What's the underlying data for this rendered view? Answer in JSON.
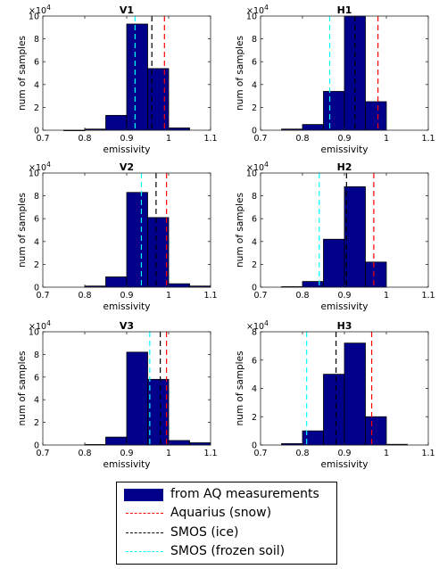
{
  "chart_data": [
    {
      "type": "bar",
      "title": "V1",
      "xlabel": "emissivity",
      "ylabel": "num of samples",
      "multiplier": "×10",
      "multiplier_exp": "4",
      "xlim": [
        0.7,
        1.1
      ],
      "ylim": [
        0,
        10
      ],
      "xticks": [
        "0.7",
        "0.8",
        "0.9",
        "1",
        "1.1"
      ],
      "yticks": [
        "0",
        "2",
        "4",
        "6",
        "8",
        "10"
      ],
      "bins": [
        [
          0.75,
          0.8,
          0.0
        ],
        [
          0.8,
          0.85,
          0.1
        ],
        [
          0.85,
          0.9,
          1.3
        ],
        [
          0.9,
          0.95,
          9.3
        ],
        [
          0.95,
          1.0,
          5.4
        ],
        [
          1.0,
          1.05,
          0.2
        ]
      ],
      "lines": {
        "aquarius": 0.99,
        "smos_ice": 0.96,
        "smos_frozen_soil": 0.92
      }
    },
    {
      "type": "bar",
      "title": "H1",
      "xlabel": "emissivity",
      "ylabel": "num of samples",
      "multiplier": "×10",
      "multiplier_exp": "4",
      "xlim": [
        0.7,
        1.1
      ],
      "ylim": [
        0,
        10
      ],
      "xticks": [
        "0.7",
        "0.8",
        "0.9",
        "1",
        "1.1"
      ],
      "yticks": [
        "0",
        "2",
        "4",
        "6",
        "8",
        "10"
      ],
      "bins": [
        [
          0.75,
          0.8,
          0.1
        ],
        [
          0.8,
          0.85,
          0.5
        ],
        [
          0.85,
          0.9,
          3.4
        ],
        [
          0.9,
          0.95,
          10.0
        ],
        [
          0.95,
          1.0,
          2.5
        ]
      ],
      "lines": {
        "aquarius": 0.98,
        "smos_ice": 0.925,
        "smos_frozen_soil": 0.865
      }
    },
    {
      "type": "bar",
      "title": "V2",
      "xlabel": "emissivity",
      "ylabel": "num of samples",
      "multiplier": "×10",
      "multiplier_exp": "4",
      "xlim": [
        0.7,
        1.1
      ],
      "ylim": [
        0,
        10
      ],
      "xticks": [
        "0.7",
        "0.8",
        "0.9",
        "1",
        "1.1"
      ],
      "yticks": [
        "0",
        "2",
        "4",
        "6",
        "8",
        "10"
      ],
      "bins": [
        [
          0.8,
          0.85,
          0.1
        ],
        [
          0.85,
          0.9,
          0.9
        ],
        [
          0.9,
          0.95,
          8.3
        ],
        [
          0.95,
          1.0,
          6.1
        ],
        [
          1.0,
          1.05,
          0.3
        ],
        [
          1.05,
          1.1,
          0.1
        ]
      ],
      "lines": {
        "aquarius": 0.995,
        "smos_ice": 0.97,
        "smos_frozen_soil": 0.935
      }
    },
    {
      "type": "bar",
      "title": "H2",
      "xlabel": "emissivity",
      "ylabel": "num of samples",
      "multiplier": "×10",
      "multiplier_exp": "4",
      "xlim": [
        0.7,
        1.1
      ],
      "ylim": [
        0,
        10
      ],
      "xticks": [
        "0.7",
        "0.8",
        "0.9",
        "1",
        "1.1"
      ],
      "yticks": [
        "0",
        "2",
        "4",
        "6",
        "8",
        "10"
      ],
      "bins": [
        [
          0.75,
          0.8,
          0.05
        ],
        [
          0.8,
          0.85,
          0.5
        ],
        [
          0.85,
          0.9,
          4.2
        ],
        [
          0.9,
          0.95,
          8.8
        ],
        [
          0.95,
          1.0,
          2.2
        ]
      ],
      "lines": {
        "aquarius": 0.97,
        "smos_ice": 0.905,
        "smos_frozen_soil": 0.84
      }
    },
    {
      "type": "bar",
      "title": "V3",
      "xlabel": "emissivity",
      "ylabel": "num of samples",
      "multiplier": "×10",
      "multiplier_exp": "4",
      "xlim": [
        0.7,
        1.1
      ],
      "ylim": [
        0,
        10
      ],
      "xticks": [
        "0.7",
        "0.8",
        "0.9",
        "1",
        "1.1"
      ],
      "yticks": [
        "0",
        "2",
        "4",
        "6",
        "8",
        "10"
      ],
      "bins": [
        [
          0.8,
          0.85,
          0.05
        ],
        [
          0.85,
          0.9,
          0.7
        ],
        [
          0.9,
          0.95,
          8.2
        ],
        [
          0.95,
          1.0,
          5.8
        ],
        [
          1.0,
          1.05,
          0.4
        ],
        [
          1.05,
          1.1,
          0.2
        ]
      ],
      "lines": {
        "aquarius": 0.995,
        "smos_ice": 0.98,
        "smos_frozen_soil": 0.955
      }
    },
    {
      "type": "bar",
      "title": "H3",
      "xlabel": "emissivity",
      "ylabel": "num of samples",
      "multiplier": "×10",
      "multiplier_exp": "4",
      "xlim": [
        0.7,
        1.1
      ],
      "ylim": [
        0,
        8
      ],
      "xticks": [
        "0.7",
        "0.8",
        "0.9",
        "1",
        "1.1"
      ],
      "yticks": [
        "0",
        "2",
        "4",
        "6",
        "8"
      ],
      "bins": [
        [
          0.75,
          0.8,
          0.1
        ],
        [
          0.8,
          0.85,
          1.0
        ],
        [
          0.85,
          0.9,
          5.0
        ],
        [
          0.9,
          0.95,
          7.2
        ],
        [
          0.95,
          1.0,
          2.0
        ],
        [
          1.0,
          1.05,
          0.05
        ]
      ],
      "lines": {
        "aquarius": 0.965,
        "smos_ice": 0.88,
        "smos_frozen_soil": 0.81
      }
    }
  ],
  "legend": {
    "placement": "bottom-center",
    "items": [
      {
        "key": "histogram",
        "label": "from AQ measurements",
        "style": "bar",
        "color": "#00008b"
      },
      {
        "key": "aquarius",
        "label": "Aquarius (snow)",
        "style": "dashed",
        "color": "#ff0000"
      },
      {
        "key": "smos_ice",
        "label": "SMOS (ice)",
        "style": "dashed",
        "color": "#000000"
      },
      {
        "key": "smos_frozen_soil",
        "label": "SMOS (frozen soil)",
        "style": "dashed",
        "color": "#00ffff"
      }
    ]
  },
  "colors": {
    "bar": "#00008b",
    "bar_edge": "#000000",
    "axes": "#262626",
    "text": "#000000"
  }
}
